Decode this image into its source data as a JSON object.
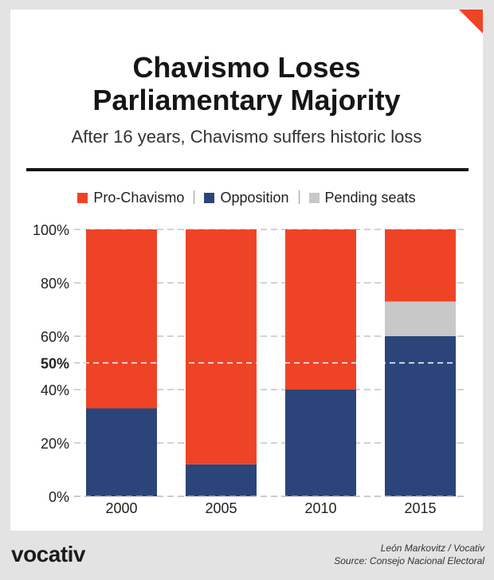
{
  "header": {
    "title_line1": "Chavismo Loses",
    "title_line2": "Parliamentary Majority",
    "subtitle": "After 16 years, Chavismo suffers historic loss"
  },
  "colors": {
    "pro_chavismo": "#ef4326",
    "opposition": "#2b457b",
    "pending": "#c8c8c8",
    "corner": "#ef4326"
  },
  "chart_data": {
    "type": "bar",
    "stacked": true,
    "categories": [
      "2000",
      "2005",
      "2010",
      "2015"
    ],
    "series": [
      {
        "name": "Opposition",
        "values": [
          33,
          12,
          40,
          60
        ]
      },
      {
        "name": "Pending seats",
        "values": [
          0,
          0,
          0,
          13
        ]
      },
      {
        "name": "Pro-Chavismo",
        "values": [
          67,
          88,
          60,
          27
        ]
      }
    ],
    "ylim": [
      0,
      100
    ],
    "yticks": [
      {
        "value": 0,
        "label": "0%"
      },
      {
        "value": 20,
        "label": "20%"
      },
      {
        "value": 40,
        "label": "40%"
      },
      {
        "value": 50,
        "label": "50%"
      },
      {
        "value": 60,
        "label": "60%"
      },
      {
        "value": 80,
        "label": "80%"
      },
      {
        "value": 100,
        "label": "100%"
      }
    ],
    "reference_line": 50,
    "grid": true,
    "legend_position": "top-center"
  },
  "footer": {
    "brand": "vocativ",
    "author": "León Markovitz / Vocativ",
    "source": "Source: Consejo Nacional Electoral"
  }
}
